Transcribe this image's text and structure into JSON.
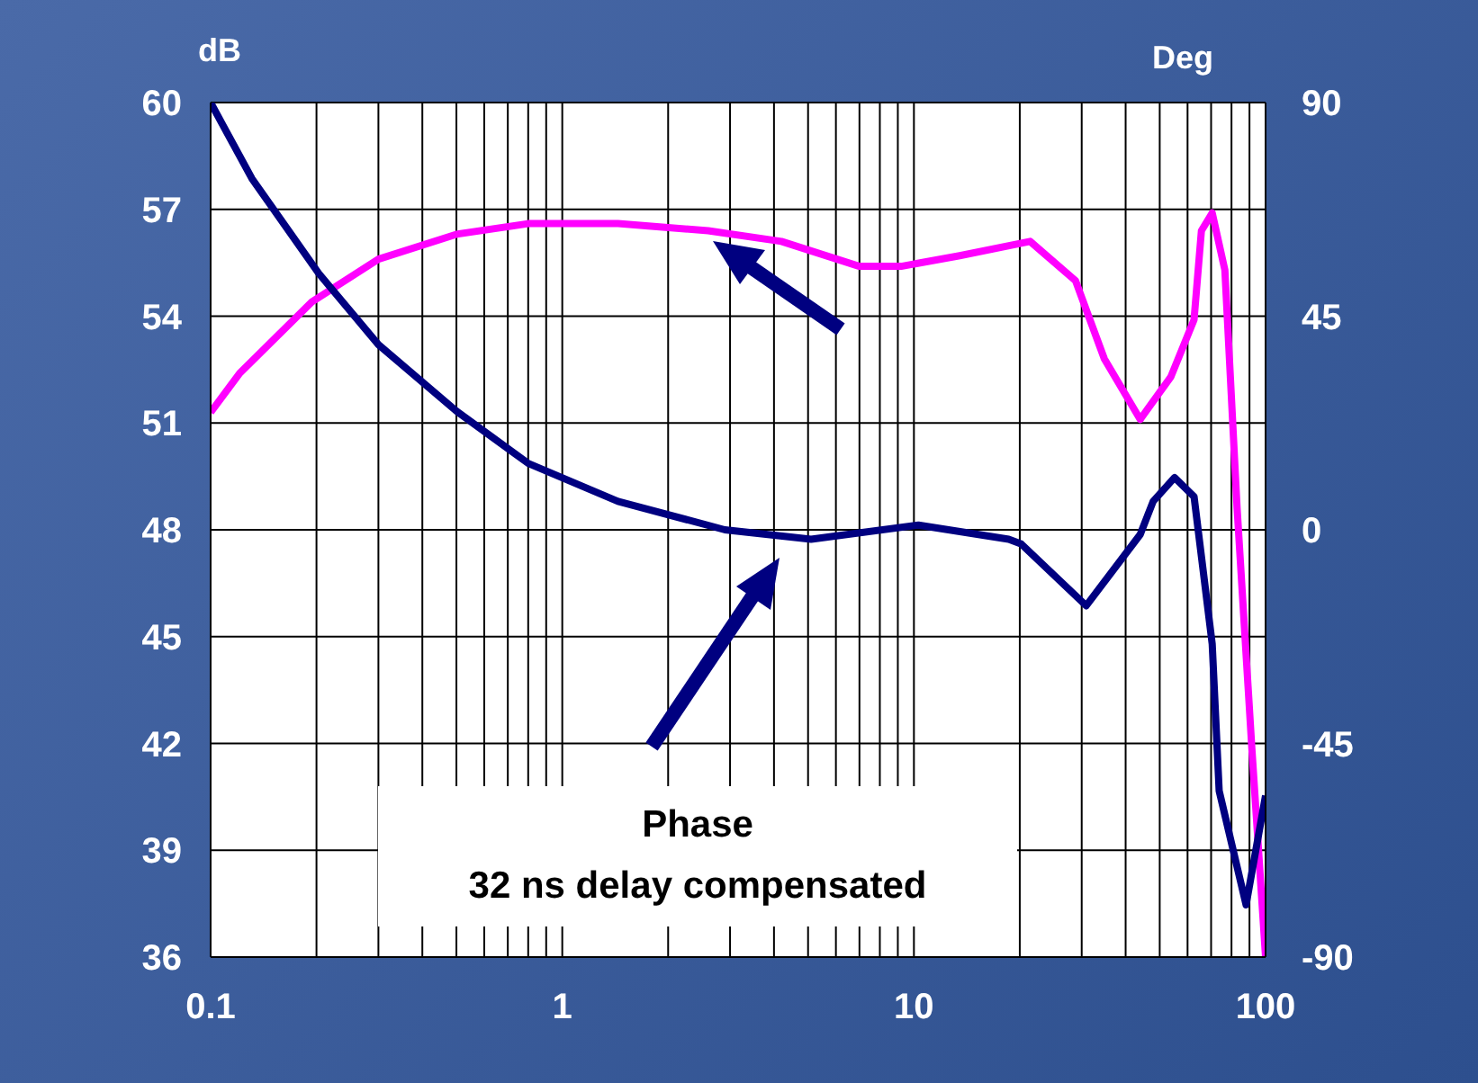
{
  "chart_data": {
    "type": "line",
    "ylabel": "dB",
    "y2label": "Deg",
    "xlim": [
      0.1,
      100
    ],
    "xticks": [
      0.1,
      {
        "value": 0.2,
        "label": null
      },
      {
        "value": 0.3,
        "label": null
      },
      {
        "value": 0.4,
        "label": null
      },
      {
        "value": 0.5,
        "label": null
      },
      {
        "value": 0.6,
        "label": null
      },
      {
        "value": 0.7,
        "label": null
      },
      {
        "value": 0.8,
        "label": null
      },
      {
        "value": 0.9,
        "label": null
      },
      1,
      {
        "value": 2,
        "label": null
      },
      {
        "value": 3,
        "label": null
      },
      {
        "value": 4,
        "label": null
      },
      {
        "value": 5,
        "label": null
      },
      {
        "value": 6,
        "label": null
      },
      {
        "value": 7,
        "label": null
      },
      {
        "value": 8,
        "label": null
      },
      {
        "value": 9,
        "label": null
      },
      10,
      {
        "value": 20,
        "label": null
      },
      {
        "value": 30,
        "label": null
      },
      {
        "value": 40,
        "label": null
      },
      {
        "value": 50,
        "label": null
      },
      {
        "value": 60,
        "label": null
      },
      {
        "value": 70,
        "label": null
      },
      {
        "value": 80,
        "label": null
      },
      {
        "value": 90,
        "label": null
      },
      100
    ],
    "ylim": [
      36,
      60
    ],
    "yticks": [
      36,
      39,
      42,
      45,
      48,
      51,
      54,
      57,
      60
    ],
    "y2lim": [
      -90,
      90
    ],
    "y2ticks": [
      -90,
      -45,
      0,
      45,
      90
    ],
    "log": "x",
    "grid": true,
    "marker": "none",
    "line_style": "solid",
    "annotations": [
      "Phase",
      "32 ns delay compensated"
    ],
    "series": [
      {
        "color": "#ff00ff",
        "x": [
          0.1,
          0.121,
          0.194,
          0.3,
          0.5,
          0.8,
          1.44,
          2.6,
          4.2,
          7,
          9.2,
          13.5,
          21.4,
          28.8,
          34.8,
          44,
          53.8,
          62.6,
          65.7,
          70.5,
          76.6,
          83,
          91.5,
          100
        ],
        "values": [
          51.3,
          52.4,
          54.4,
          55.6,
          56.3,
          56.6,
          56.6,
          56.4,
          56.1,
          55.4,
          55.4,
          55.7,
          56.1,
          55,
          52.8,
          51.1,
          52.3,
          53.9,
          56.4,
          56.9,
          55.3,
          48.6,
          41.8,
          36
        ]
      },
      {
        "color": "#000080",
        "axis": "y2",
        "x": [
          0.1,
          0.131,
          0.203,
          0.3,
          0.5,
          0.8,
          1.44,
          2.9,
          5.1,
          10.3,
          18.6,
          20.2,
          30.9,
          44,
          47.9,
          55.1,
          62.6,
          70.5,
          73.8,
          88,
          100
        ],
        "values": [
          90,
          74,
          54,
          39,
          25,
          14,
          6,
          0,
          -2,
          1,
          -2,
          -3,
          -16,
          -1,
          6,
          11,
          7,
          -24,
          -55,
          -79,
          -56
        ]
      }
    ]
  }
}
